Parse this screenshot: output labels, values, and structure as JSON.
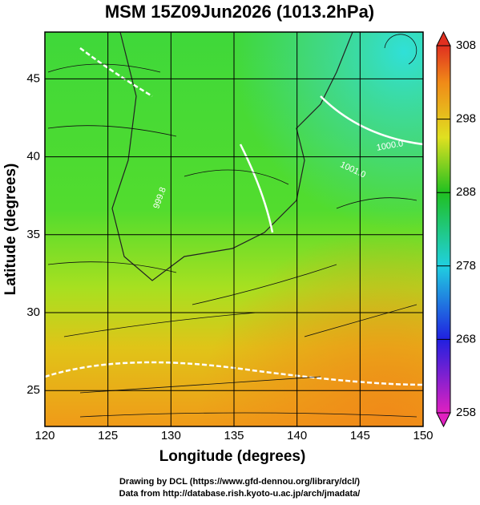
{
  "chart_data": {
    "type": "map",
    "title": "MSM 15Z09Jun2026 (1013.2hPa)",
    "xlabel": "Longitude (degrees)",
    "ylabel": "Latitude  (degrees)",
    "xlim": [
      120,
      150
    ],
    "xticks": [
      120,
      125,
      130,
      135,
      140,
      145,
      150
    ],
    "ylim": [
      22.7,
      48
    ],
    "yticks": [
      25,
      30,
      35,
      40,
      45
    ],
    "grid": true,
    "colorbar": {
      "lim": [
        258,
        308
      ],
      "ticks": [
        258,
        268,
        278,
        288,
        298,
        308
      ]
    },
    "contour_labels": [
      "999.8",
      "1001.0",
      "1000.0"
    ],
    "credits": [
      "Drawing by DCL (https://www.gfd-dennou.org/library/dcl/)",
      "Data from http://database.rish.kyoto-u.ac.jp/arch/jmadata/"
    ]
  }
}
